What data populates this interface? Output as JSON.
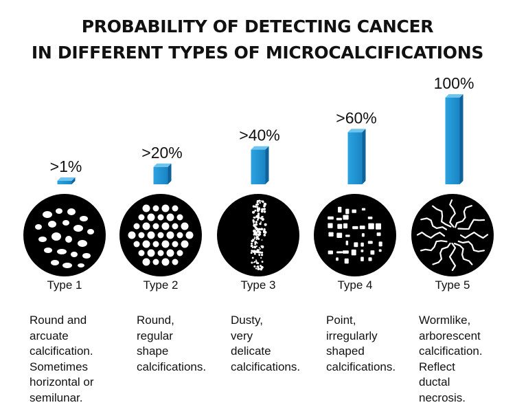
{
  "title": {
    "line1": "PROBABILITY OF DETECTING CANCER",
    "line2": "IN DIFFERENT TYPES OF MICROCALCIFICATIONS"
  },
  "chart_data": {
    "type": "bar",
    "title": "PROBABILITY OF DETECTING CANCER IN DIFFERENT TYPES OF MICROCALCIFICATIONS",
    "categories": [
      "Type 1",
      "Type 2",
      "Type 3",
      "Type 4",
      "Type 5"
    ],
    "values": [
      1,
      20,
      40,
      60,
      100
    ],
    "value_labels": [
      ">1%",
      ">20%",
      ">40%",
      ">60%",
      "100%"
    ],
    "ylim": [
      0,
      100
    ],
    "grid": false,
    "legend": "none",
    "bar_color": "#1e8fd0",
    "descriptions": [
      [
        "Round and",
        "arcuate",
        "calcification.",
        "Sometimes",
        "horizontal or",
        "semilunar."
      ],
      [
        "Round,",
        "regular",
        "shape",
        "calcifications."
      ],
      [
        "Dusty,",
        "very",
        "delicate",
        "calcifications."
      ],
      [
        "Point,",
        "irregularly",
        "shaped",
        "calcifications."
      ],
      [
        "Wormlike,",
        "arborescent",
        "calcification.",
        "Reflect",
        "ductal",
        "necrosis."
      ]
    ]
  },
  "icons": [
    "round-arcuate-calcification-icon",
    "round-regular-calcification-icon",
    "dusty-calcification-icon",
    "irregular-point-calcification-icon",
    "wormlike-calcification-icon"
  ]
}
